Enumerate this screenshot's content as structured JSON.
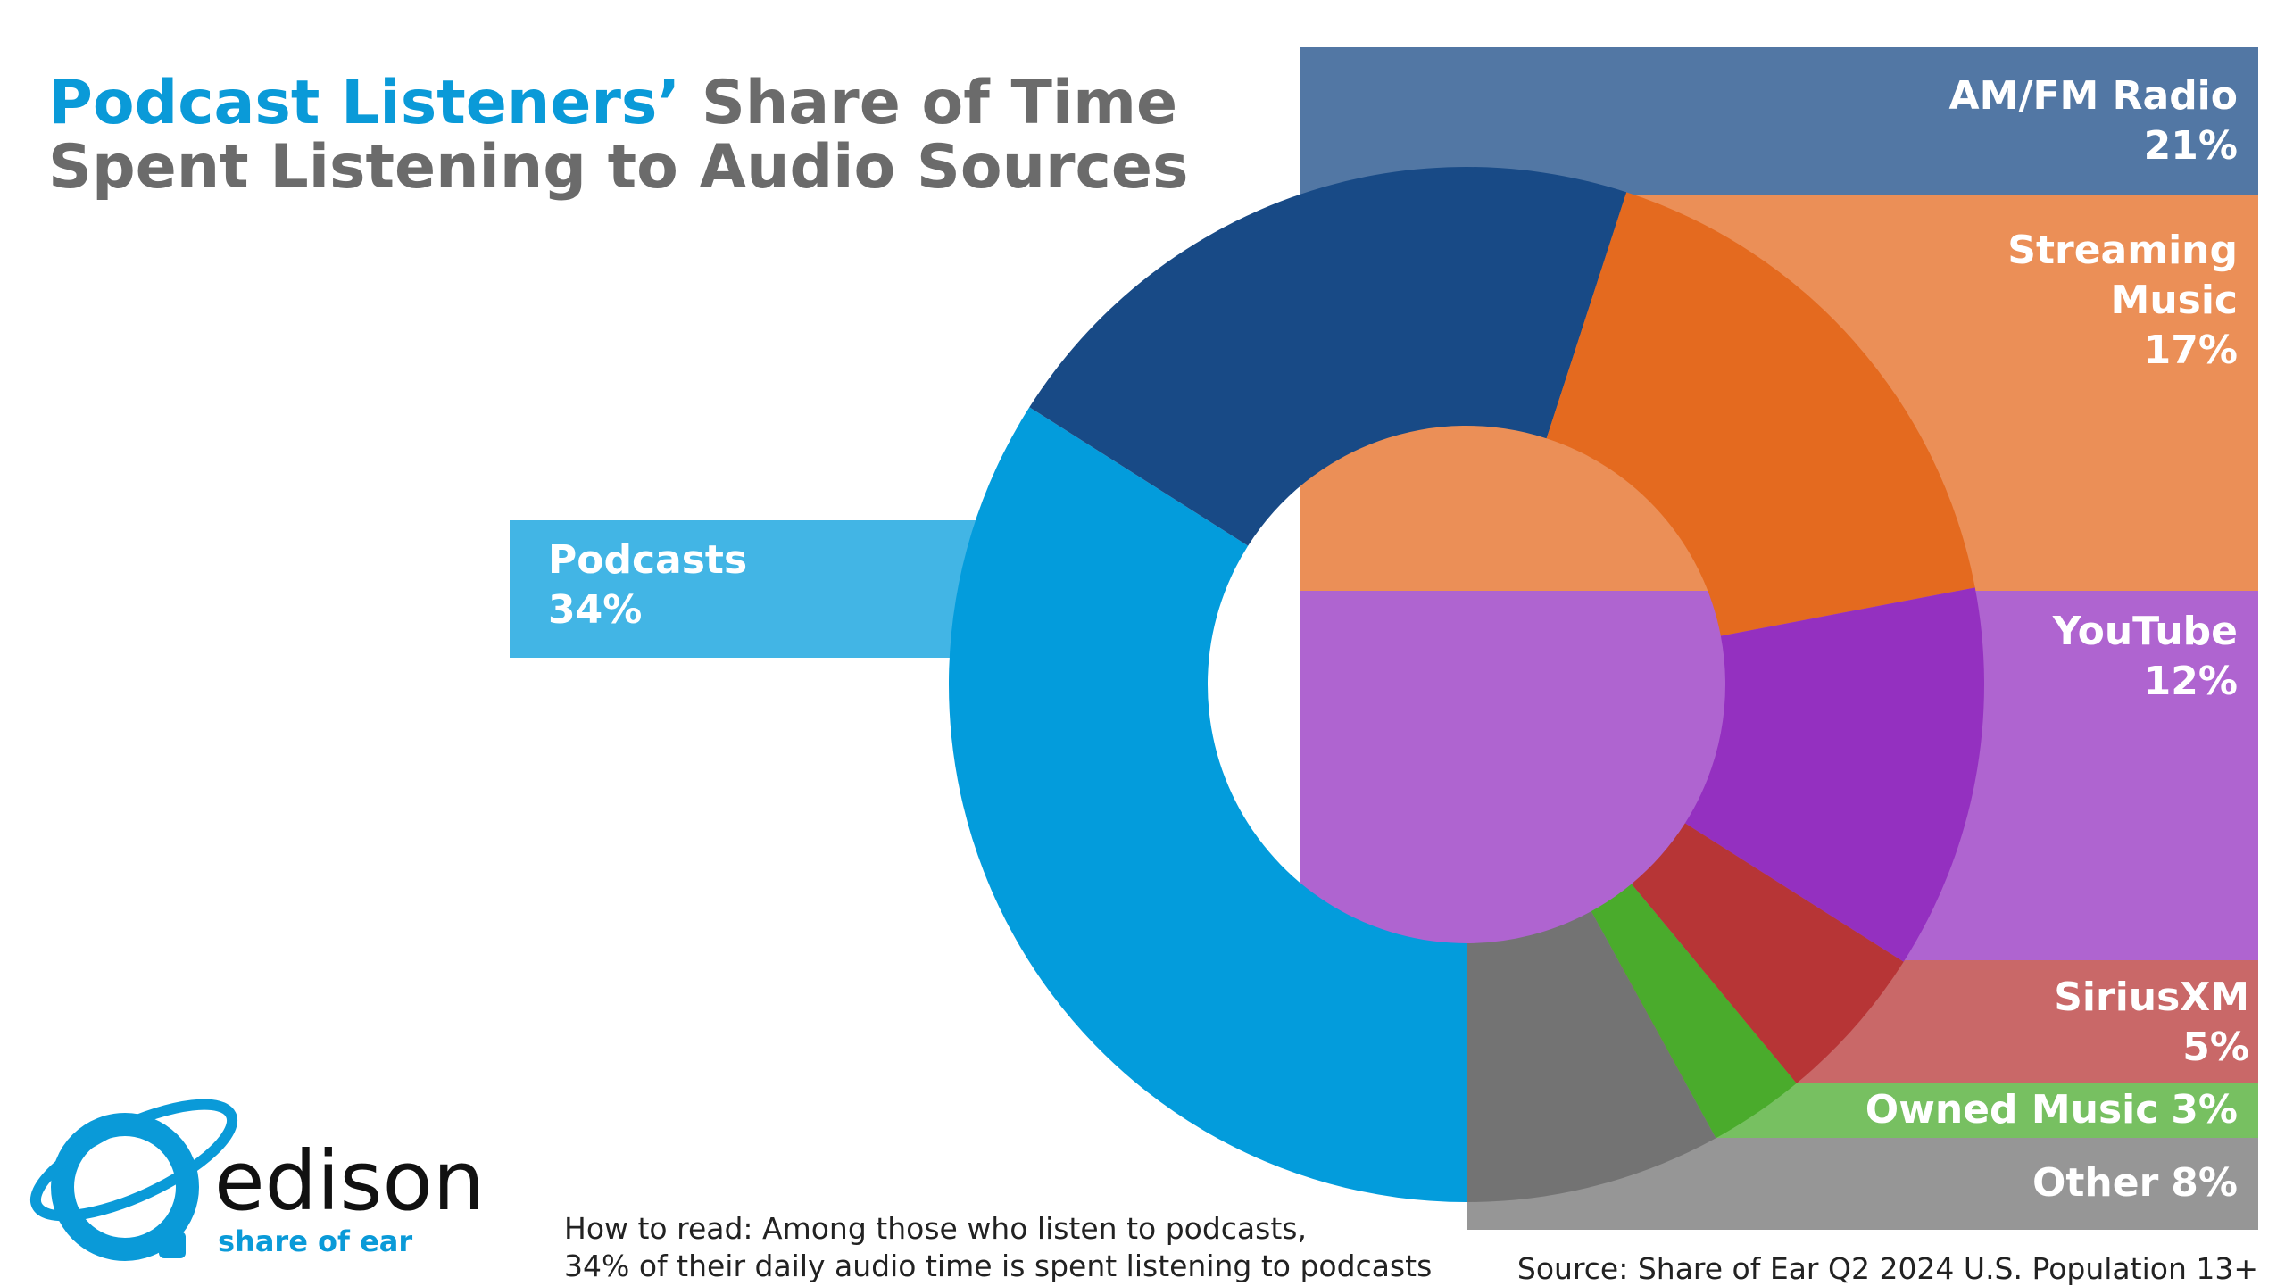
{
  "chart_data": {
    "type": "donut",
    "title_highlight": "Podcast Listeners’",
    "title_rest": "Share of Time",
    "title_line2": "Spent Listening to Audio Sources",
    "categories": [
      "Podcasts",
      "AM/FM Radio",
      "Streaming Music",
      "YouTube",
      "SiriusXM",
      "Owned Music",
      "Other"
    ],
    "values": [
      34,
      21,
      17,
      12,
      5,
      3,
      8
    ],
    "value_labels": [
      "34%",
      "21%",
      "17%",
      "12%",
      "5%",
      "3%",
      "8%"
    ],
    "colors": [
      "#039cdc",
      "#184a86",
      "#e46a1f",
      "#9430c0",
      "#b73536",
      "#4aab2c",
      "#737373"
    ],
    "note": [
      "How to read: Among those who listen to podcasts,",
      "34% of their daily audio time is spent listening to podcasts"
    ],
    "source": "Source: Share of Ear Q2 2024 U.S. Population 13+",
    "logo": {
      "name": "edison",
      "tagline": "share of ear"
    }
  }
}
